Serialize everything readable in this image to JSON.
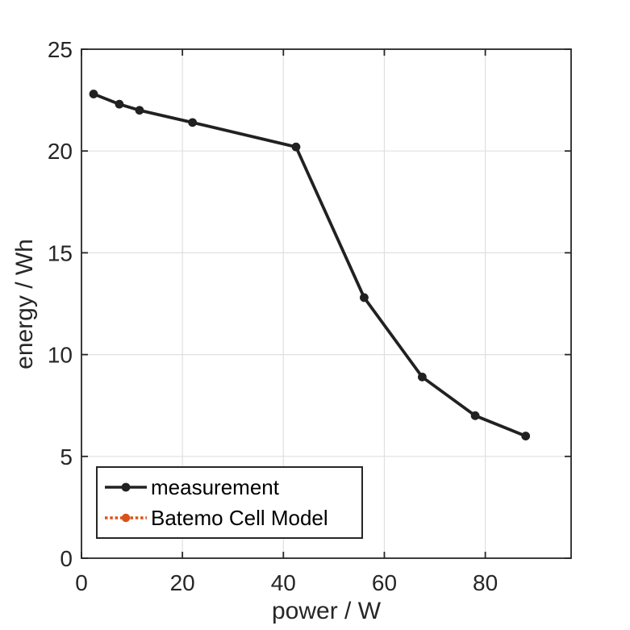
{
  "chart_data": {
    "type": "line",
    "title": "",
    "xlabel": "power / W",
    "ylabel": "energy / Wh",
    "xlim": [
      0,
      97
    ],
    "ylim": [
      0,
      25
    ],
    "xticks": [
      0,
      20,
      40,
      60,
      80
    ],
    "yticks": [
      0,
      5,
      10,
      15,
      20,
      25
    ],
    "grid": true,
    "legend_position": "southwest",
    "colors": {
      "axis": "#262626",
      "grid": "#e0e0e0",
      "background": "#ffffff"
    },
    "series": [
      {
        "name": "measurement",
        "color": "#212121",
        "line_style": "solid",
        "marker": "filled-circle",
        "x": [
          2.4,
          7.5,
          11.5,
          22,
          42.5,
          56,
          67.5,
          78,
          88
        ],
        "y": [
          22.8,
          22.3,
          22.0,
          21.4,
          20.2,
          12.8,
          8.9,
          7.0,
          6.0
        ]
      },
      {
        "name": "Batemo Cell Model",
        "color": "#d95319",
        "line_style": "dotted",
        "marker": "filled-circle",
        "visible_in_plot": false,
        "x": [],
        "y": []
      }
    ]
  }
}
